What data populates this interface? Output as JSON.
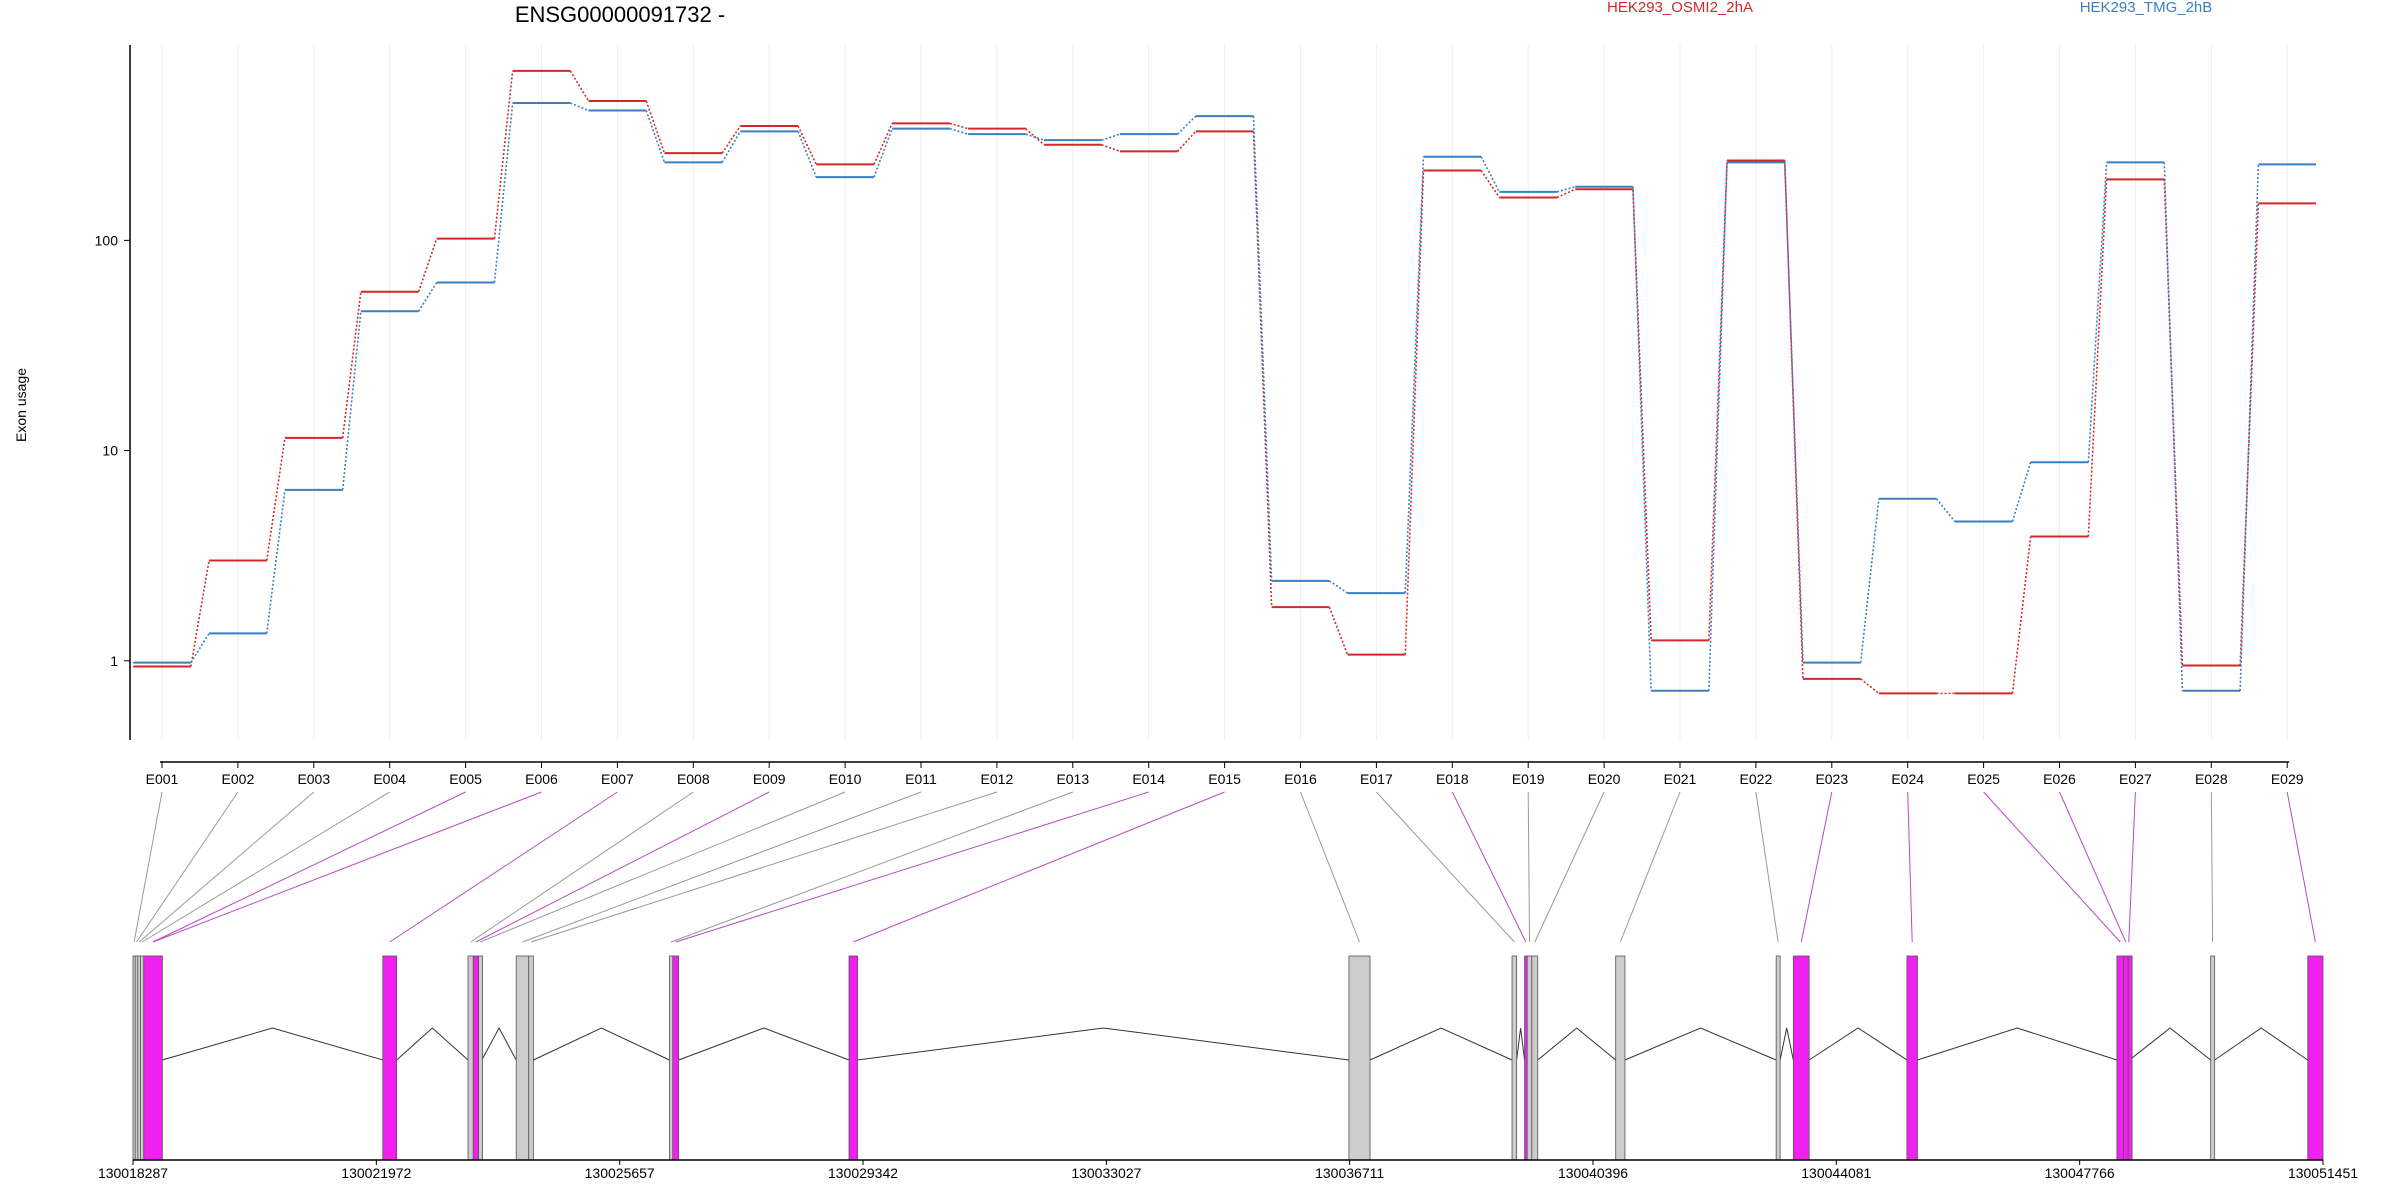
{
  "chart_data": {
    "type": "line",
    "title": "ENSG00000091732 -",
    "ylabel": "Exon usage",
    "xlabel": "",
    "yscale": "log",
    "ylim": [
      0.42,
      850
    ],
    "y_ticks": [
      "1",
      "10",
      "100"
    ],
    "y_tick_values": [
      1,
      10,
      100
    ],
    "grid": true,
    "legend_position": "top",
    "categories": [
      "E001",
      "E002",
      "E003",
      "E004",
      "E005",
      "E006",
      "E007",
      "E008",
      "E009",
      "E010",
      "E011",
      "E012",
      "E013",
      "E014",
      "E015",
      "E016",
      "E017",
      "E018",
      "E019",
      "E020",
      "E021",
      "E022",
      "E023",
      "E024",
      "E025",
      "E026",
      "E027",
      "E028",
      "E029"
    ],
    "series": [
      {
        "name": "HEK293_OSMI2_2hA",
        "color": "#d62728",
        "values": [
          0.94,
          3.0,
          11.5,
          57,
          102,
          640,
          460,
          260,
          350,
          230,
          360,
          340,
          285,
          265,
          330,
          1.8,
          1.07,
          215,
          160,
          175,
          1.25,
          240,
          0.82,
          0.7,
          0.7,
          3.9,
          195,
          0.95,
          150
        ]
      },
      {
        "name": "HEK293_TMG_2hB",
        "color": "#3a7fc1",
        "values": [
          0.98,
          1.35,
          6.5,
          46,
          63,
          450,
          415,
          235,
          330,
          200,
          340,
          320,
          300,
          320,
          390,
          2.4,
          2.1,
          250,
          170,
          180,
          0.72,
          235,
          0.98,
          5.9,
          4.6,
          8.8,
          235,
          0.72,
          230
        ]
      }
    ],
    "genomic_axis": {
      "ticks": [
        "130018287",
        "130021972",
        "130025657",
        "130029342",
        "130033027",
        "130036711",
        "130040396",
        "130044081",
        "130047766",
        "130051451"
      ],
      "tick_values": [
        130018287,
        130021972,
        130025657,
        130029342,
        130033027,
        130036711,
        130040396,
        130044081,
        130047766,
        130051451
      ],
      "range": [
        130018287,
        130051451
      ]
    },
    "exon_colors": {
      "significant": "#f020f0",
      "not_significant": "#cccccc"
    },
    "exons": [
      {
        "id": "E001",
        "start": 130018287,
        "end": 130018320,
        "significant": false
      },
      {
        "id": "E002",
        "start": 130018320,
        "end": 130018360,
        "significant": false
      },
      {
        "id": "E003",
        "start": 130018360,
        "end": 130018400,
        "significant": false
      },
      {
        "id": "E004",
        "start": 130018400,
        "end": 130018450,
        "significant": false
      },
      {
        "id": "E005",
        "start": 130018450,
        "end": 130018730,
        "significant": true
      },
      {
        "id": "E006",
        "start": 130018450,
        "end": 130018730,
        "significant": true
      },
      {
        "id": "E007",
        "start": 130022070,
        "end": 130022280,
        "significant": true
      },
      {
        "id": "E008",
        "start": 130023360,
        "end": 130023440,
        "significant": false
      },
      {
        "id": "E009",
        "start": 130023440,
        "end": 130023520,
        "significant": true
      },
      {
        "id": "E010",
        "start": 130023520,
        "end": 130023570,
        "significant": false
      },
      {
        "id": "E011",
        "start": 130024090,
        "end": 130024280,
        "significant": false
      },
      {
        "id": "E012",
        "start": 130024280,
        "end": 130024350,
        "significant": false
      },
      {
        "id": "E013",
        "start": 130026410,
        "end": 130026460,
        "significant": false
      },
      {
        "id": "E014",
        "start": 130026460,
        "end": 130026550,
        "significant": true
      },
      {
        "id": "E015",
        "start": 130029130,
        "end": 130029260,
        "significant": true
      },
      {
        "id": "E016",
        "start": 130036700,
        "end": 130037020,
        "significant": false
      },
      {
        "id": "E017",
        "start": 130039170,
        "end": 130039240,
        "significant": false
      },
      {
        "id": "E018",
        "start": 130039360,
        "end": 130039400,
        "significant": true
      },
      {
        "id": "E019",
        "start": 130039400,
        "end": 130039470,
        "significant": false
      },
      {
        "id": "E020",
        "start": 130039470,
        "end": 130039560,
        "significant": false
      },
      {
        "id": "E021",
        "start": 130040740,
        "end": 130040880,
        "significant": false
      },
      {
        "id": "E022",
        "start": 130043170,
        "end": 130043230,
        "significant": false
      },
      {
        "id": "E023",
        "start": 130043430,
        "end": 130043670,
        "significant": true
      },
      {
        "id": "E024",
        "start": 130045150,
        "end": 130045310,
        "significant": true
      },
      {
        "id": "E025",
        "start": 130048330,
        "end": 130048430,
        "significant": true
      },
      {
        "id": "E026",
        "start": 130048430,
        "end": 130048500,
        "significant": true
      },
      {
        "id": "E027",
        "start": 130048500,
        "end": 130048520,
        "significant": true
      },
      {
        "id": "E028",
        "start": 130049750,
        "end": 130049810,
        "significant": false
      },
      {
        "id": "E029",
        "start": 130051220,
        "end": 130051451,
        "significant": true
      }
    ]
  }
}
